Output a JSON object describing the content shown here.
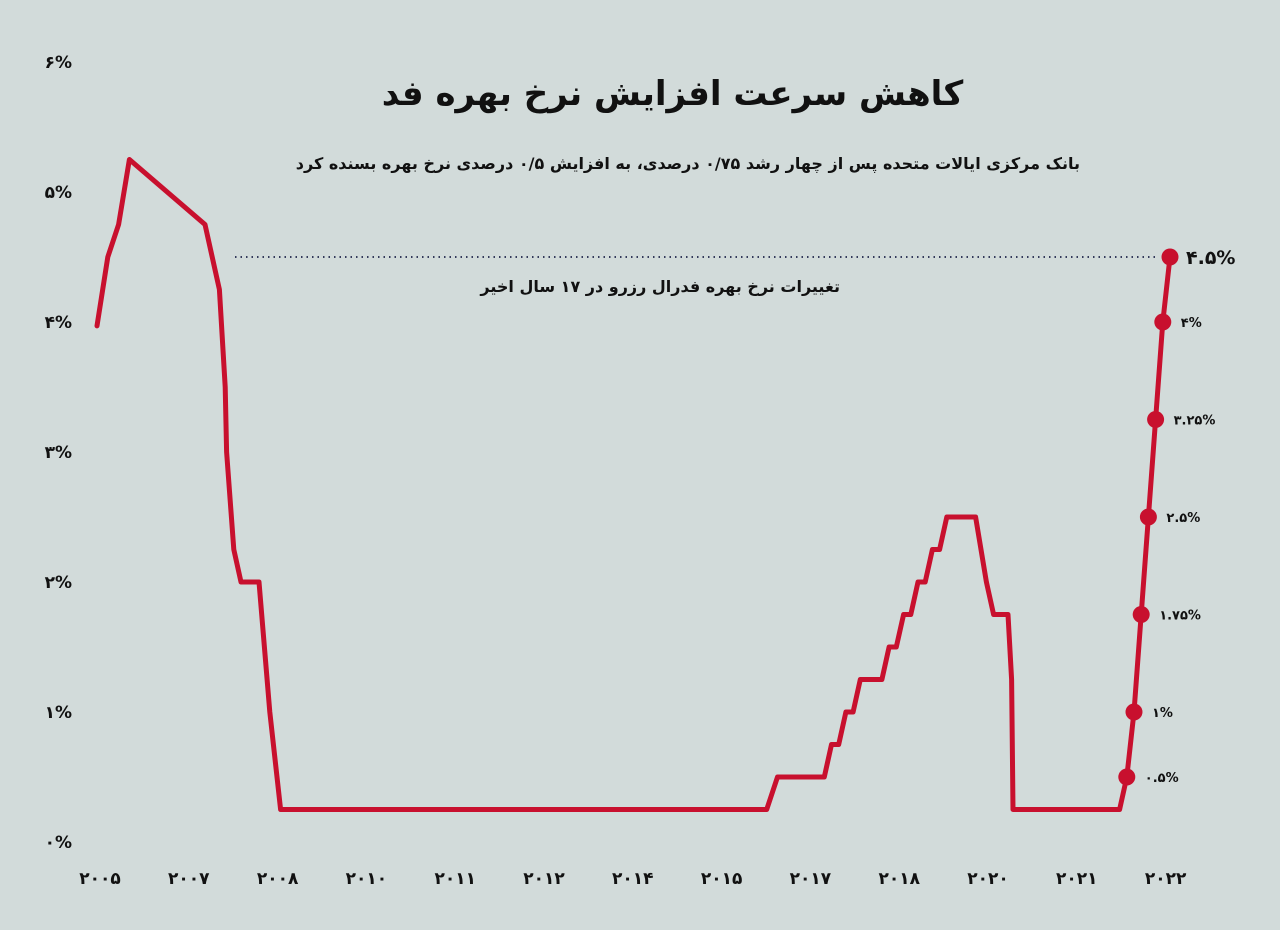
{
  "chart_data": {
    "type": "line",
    "title": "کاهش سرعت افزایش نرخ بهره فد",
    "subtitle": "بانک مرکزی ایالات متحده پس از چهار رشد ۰/۷۵ درصدی، به افزایش ۰/۵ درصدی نرخ بهره بسنده کرد",
    "annotation": "تغییرات نرخ بهره فدرال رزرو در ۱۷ سال اخیر",
    "ylim": [
      0,
      6
    ],
    "y_ticks": [
      "۰%",
      "۱%",
      "۲%",
      "۳%",
      "۴%",
      "۵%",
      "۶%"
    ],
    "x_ticks": [
      "۲۰۰۵",
      "۲۰۰۷",
      "۲۰۰۸",
      "۲۰۱۰",
      "۲۰۱۱",
      "۲۰۱۲",
      "۲۰۱۴",
      "۲۰۱۵",
      "۲۰۱۷",
      "۲۰۱۸",
      "۲۰۲۰",
      "۲۰۲۱",
      "۲۰۲۲"
    ],
    "grid": false,
    "line_color": "#c8102e",
    "reference_line": {
      "value": 4.5,
      "style": "dotted",
      "color": "#33395a"
    },
    "series": [
      {
        "values": [
          [
            2005.0,
            3.97
          ],
          [
            2005.15,
            4.5
          ],
          [
            2005.3,
            4.75
          ],
          [
            2005.45,
            5.25
          ],
          [
            2006.5,
            4.75
          ],
          [
            2006.7,
            4.25
          ],
          [
            2006.78,
            3.5
          ],
          [
            2006.8,
            3.0
          ],
          [
            2006.9,
            2.25
          ],
          [
            2007.0,
            2.0
          ],
          [
            2007.25,
            2.0
          ],
          [
            2007.4,
            1.0
          ],
          [
            2007.55,
            0.25
          ],
          [
            2014.3,
            0.25
          ],
          [
            2014.45,
            0.5
          ],
          [
            2015.1,
            0.5
          ],
          [
            2015.2,
            0.75
          ],
          [
            2015.3,
            0.75
          ],
          [
            2015.4,
            1.0
          ],
          [
            2015.5,
            1.0
          ],
          [
            2015.6,
            1.25
          ],
          [
            2015.9,
            1.25
          ],
          [
            2016.0,
            1.5
          ],
          [
            2016.1,
            1.5
          ],
          [
            2016.2,
            1.75
          ],
          [
            2016.3,
            1.75
          ],
          [
            2016.4,
            2.0
          ],
          [
            2016.5,
            2.0
          ],
          [
            2016.6,
            2.25
          ],
          [
            2016.7,
            2.25
          ],
          [
            2016.8,
            2.5
          ],
          [
            2017.2,
            2.5
          ],
          [
            2017.35,
            2.0
          ],
          [
            2017.45,
            1.75
          ],
          [
            2017.65,
            1.75
          ],
          [
            2017.7,
            1.25
          ],
          [
            2017.72,
            0.25
          ],
          [
            2019.2,
            0.25
          ],
          [
            2019.3,
            0.5
          ],
          [
            2019.4,
            1.0
          ],
          [
            2019.5,
            1.75
          ],
          [
            2019.6,
            2.5
          ],
          [
            2019.7,
            3.25
          ],
          [
            2019.8,
            4.0
          ],
          [
            2019.9,
            4.5
          ]
        ]
      }
    ],
    "point_labels": [
      {
        "x": 2019.3,
        "y": 0.5,
        "label": "۰.۵%"
      },
      {
        "x": 2019.4,
        "y": 1.0,
        "label": "۱%"
      },
      {
        "x": 2019.5,
        "y": 1.75,
        "label": "۱.۷۵%"
      },
      {
        "x": 2019.6,
        "y": 2.5,
        "label": "۲.۵%"
      },
      {
        "x": 2019.7,
        "y": 3.25,
        "label": "۳.۲۵%"
      },
      {
        "x": 2019.8,
        "y": 4.0,
        "label": "۴%"
      },
      {
        "x": 2019.9,
        "y": 4.5,
        "label": "۴.۵%"
      }
    ]
  }
}
